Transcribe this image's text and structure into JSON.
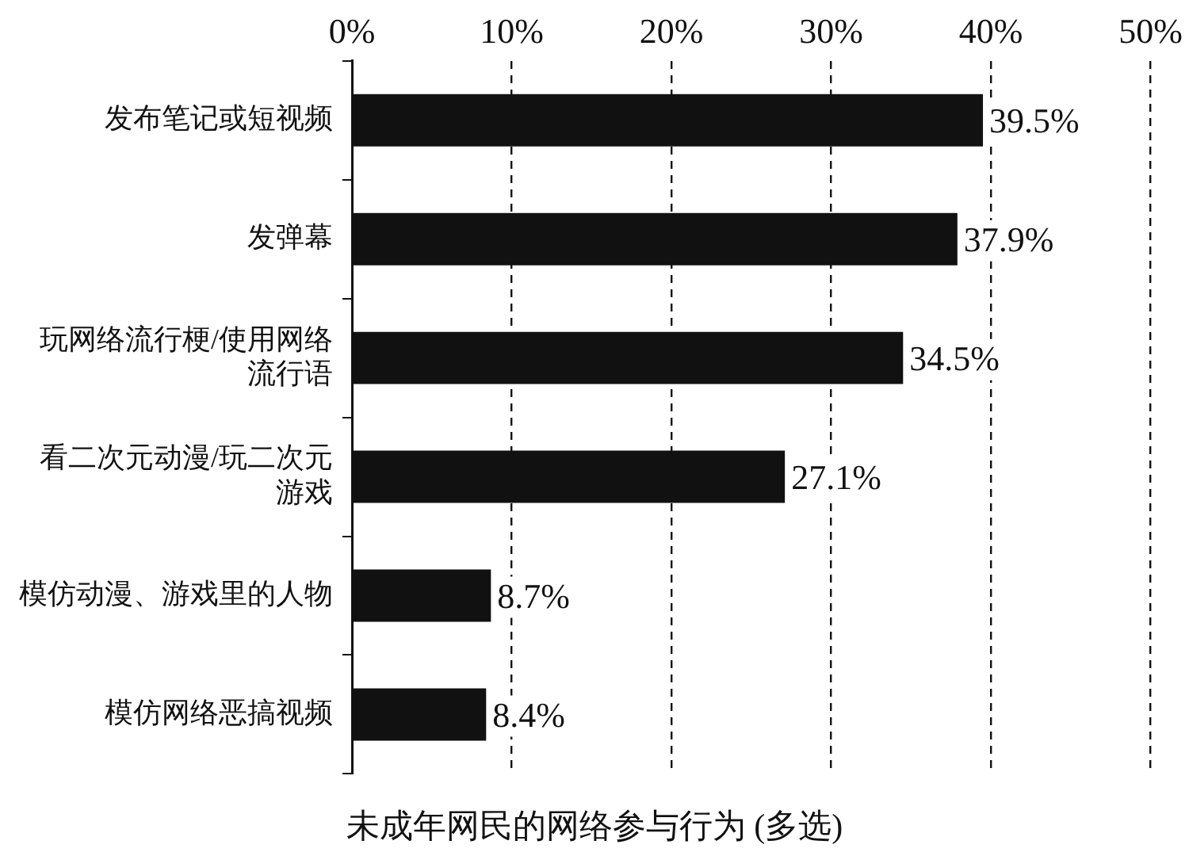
{
  "chart_data": {
    "type": "bar",
    "orientation": "horizontal",
    "xlabel": "未成年网民的网络参与行为 (多选)",
    "categories": [
      "发布笔记或短视频",
      "发弹幕",
      "玩网络流行梗/使用网络流行语",
      "看二次元动漫/玩二次元游戏",
      "模仿动漫、游戏里的人物",
      "模仿网络恶搞视频"
    ],
    "values": [
      39.5,
      37.9,
      34.5,
      27.1,
      8.7,
      8.4
    ],
    "value_labels": [
      "39.5%",
      "37.9%",
      "34.5%",
      "27.1%",
      "8.7%",
      "8.4%"
    ],
    "color": "#111111",
    "xlim": [
      0,
      50
    ],
    "xticks": [
      {
        "value": 0,
        "label": "0%"
      },
      {
        "value": 10,
        "label": "10%"
      },
      {
        "value": 20,
        "label": "20%"
      },
      {
        "value": 30,
        "label": "30%"
      },
      {
        "value": 40,
        "label": "40%"
      },
      {
        "value": 50,
        "label": "50%"
      }
    ],
    "grid": "x",
    "line_style": "dashed",
    "legend": false
  }
}
